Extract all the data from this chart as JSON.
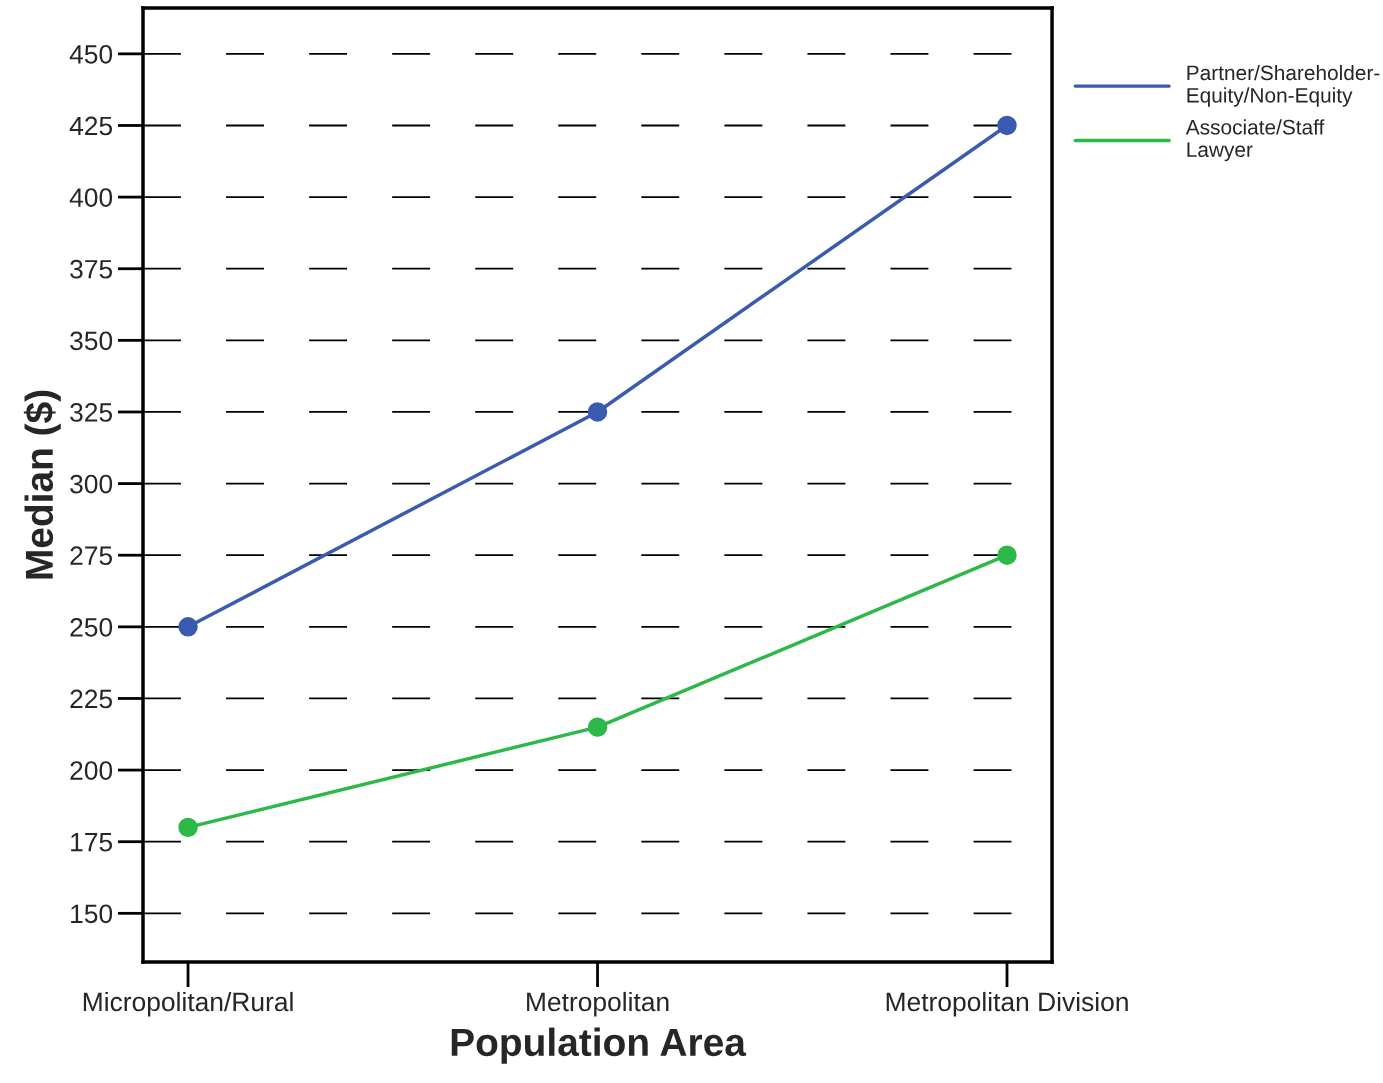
{
  "chart_data": {
    "type": "line",
    "xlabel": "Population Area",
    "ylabel": "Median ($)",
    "categories": [
      "Micropolitan/Rural",
      "Metropolitan",
      "Metropolitan Division"
    ],
    "series": [
      {
        "name": "Partner/Shareholder-\nEquity/Non-Equity",
        "color": "#3a5bb0",
        "values": [
          250,
          325,
          425
        ]
      },
      {
        "name": "Associate/Staff\nLawyer",
        "color": "#2db84a",
        "values": [
          180,
          215,
          275
        ]
      }
    ],
    "ylim": [
      133,
      466
    ],
    "yticks": [
      150,
      175,
      200,
      225,
      250,
      275,
      300,
      325,
      350,
      375,
      400,
      425,
      450
    ],
    "grid": "y",
    "legend": "right",
    "marker": "circle",
    "line_style": "solid"
  }
}
